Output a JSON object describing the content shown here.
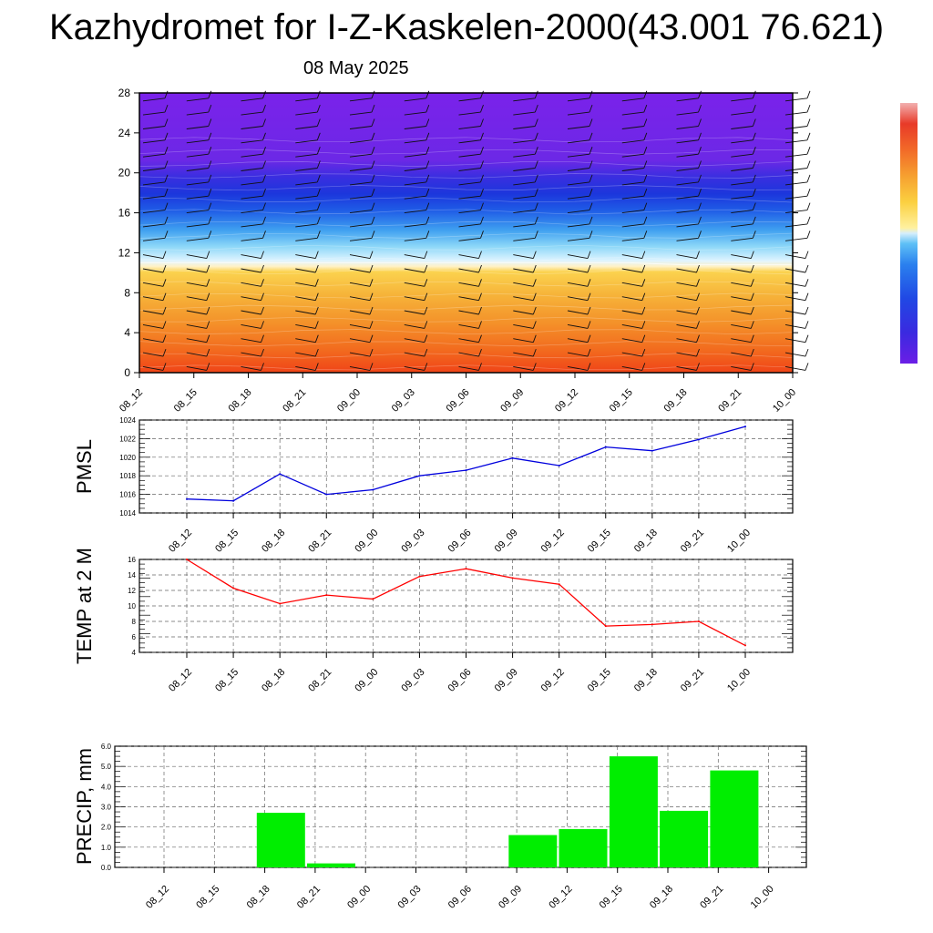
{
  "title": "Kazhydromet for I-Z-Kaskelen-2000(43.001 76.621)",
  "subtitle": "08 May 2025",
  "chart_data": [
    {
      "type": "heatmap",
      "name": "vertical cross-section",
      "x_labels": [
        "08_12",
        "08_15",
        "08_18",
        "08_21",
        "09_00",
        "09_03",
        "09_06",
        "09_09",
        "09_12",
        "09_15",
        "09_18",
        "09_21",
        "10_00"
      ],
      "ylim": [
        0,
        28
      ],
      "yticks": [
        0,
        4,
        8,
        12,
        16,
        20,
        24,
        28
      ],
      "freezing_level_approx": [
        11,
        11,
        11,
        11,
        11,
        11,
        11,
        11,
        11,
        11,
        10.8,
        10.8,
        10.8
      ],
      "colorbar": [
        "#f04030",
        "#f06030",
        "#f08030",
        "#f0a030",
        "#f0c040",
        "#f0e060",
        "#c0e8ff",
        "#60c8f8",
        "#3090f0",
        "#2050e0",
        "#3020d8",
        "#7020e0"
      ],
      "wind_barbs": true
    },
    {
      "type": "line",
      "ylabel": "PMSL",
      "x_labels": [
        "08_12",
        "08_15",
        "08_18",
        "08_21",
        "09_00",
        "09_03",
        "09_06",
        "09_09",
        "09_12",
        "09_15",
        "09_18",
        "09_21",
        "10_00"
      ],
      "series": [
        {
          "values": [
            1015.5,
            1015.3,
            1018.2,
            1016.0,
            1016.5,
            1018.0,
            1018.6,
            1019.9,
            1019.1,
            1021.1,
            1020.7,
            1021.9,
            1023.3
          ],
          "color": "#0000dd"
        }
      ],
      "ylim": [
        1014,
        1024
      ],
      "yticks": [
        1014,
        1016,
        1018,
        1020,
        1022,
        1024
      ],
      "grid": true
    },
    {
      "type": "line",
      "ylabel": "TEMP at 2 M",
      "x_labels": [
        "08_12",
        "08_15",
        "08_18",
        "08_21",
        "09_00",
        "09_03",
        "09_06",
        "09_09",
        "09_12",
        "09_15",
        "09_18",
        "09_21",
        "10_00"
      ],
      "series": [
        {
          "values": [
            16.0,
            12.3,
            10.3,
            11.4,
            10.9,
            13.8,
            14.8,
            13.6,
            12.8,
            7.4,
            7.6,
            8.0,
            4.9
          ],
          "color": "#ff0000"
        }
      ],
      "ylim": [
        4,
        16
      ],
      "yticks": [
        4,
        6,
        8,
        10,
        12,
        14,
        16
      ],
      "grid": true
    },
    {
      "type": "bar",
      "ylabel": "PRECIP, mm",
      "x_labels": [
        "08_12",
        "08_15",
        "08_18",
        "08_21",
        "09_00",
        "09_03",
        "09_06",
        "09_09",
        "09_12",
        "09_15",
        "09_18",
        "09_21",
        "10_00"
      ],
      "values": [
        0,
        0,
        2.7,
        0.2,
        0,
        0,
        0,
        1.6,
        1.9,
        5.5,
        2.8,
        4.8
      ],
      "color": "#00ee00",
      "ylim": [
        0,
        6
      ],
      "yticks": [
        "0.0",
        "1.0",
        "2.0",
        "3.0",
        "4.0",
        "5.0",
        "6.0"
      ],
      "grid": true
    }
  ]
}
